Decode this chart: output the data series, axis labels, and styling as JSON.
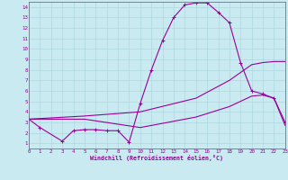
{
  "background_color": "#c8eaf0",
  "grid_color": "#aaddee",
  "line_color": "#990099",
  "marker": "+",
  "xlabel": "Windchill (Refroidissement éolien,°C)",
  "xlabel_color": "#990099",
  "xlim": [
    0,
    23
  ],
  "ylim": [
    0.5,
    14.5
  ],
  "xtick_labels": [
    "0",
    "1",
    "2",
    "3",
    "4",
    "5",
    "6",
    "7",
    "8",
    "9",
    "10",
    "11",
    "12",
    "13",
    "14",
    "15",
    "16",
    "17",
    "18",
    "19",
    "20",
    "21",
    "22",
    "23"
  ],
  "ytick_labels": [
    "1",
    "2",
    "3",
    "4",
    "5",
    "6",
    "7",
    "8",
    "9",
    "10",
    "11",
    "12",
    "13",
    "14"
  ],
  "curve1_x": [
    0,
    1,
    3,
    4,
    5,
    6,
    7,
    8,
    9,
    10,
    11,
    12,
    13,
    14,
    15,
    16,
    17,
    18,
    19,
    20,
    21,
    22,
    23
  ],
  "curve1_y": [
    3.3,
    2.5,
    1.2,
    2.2,
    2.3,
    2.3,
    2.2,
    2.2,
    1.1,
    4.8,
    8.0,
    10.8,
    13.0,
    14.2,
    14.4,
    14.4,
    13.5,
    12.5,
    8.7,
    6.0,
    5.7,
    5.3,
    3.0
  ],
  "curve2_x": [
    0,
    5,
    10,
    15,
    18,
    20,
    21,
    22,
    23
  ],
  "curve2_y": [
    3.3,
    3.6,
    4.0,
    5.3,
    7.0,
    8.5,
    8.7,
    8.8,
    8.8
  ],
  "curve3_x": [
    0,
    5,
    10,
    15,
    18,
    20,
    21,
    22,
    23
  ],
  "curve3_y": [
    3.3,
    3.3,
    2.5,
    3.5,
    4.5,
    5.5,
    5.6,
    5.3,
    2.7
  ]
}
